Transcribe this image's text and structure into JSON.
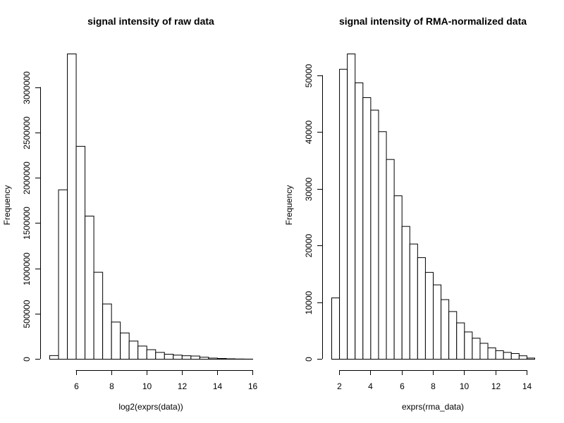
{
  "chart_data": [
    {
      "type": "bar",
      "title": "signal intensity of raw data",
      "xlabel": "log2(exprs(data))",
      "ylabel": "Frequency",
      "x_ticks": [
        6,
        8,
        10,
        12,
        14,
        16
      ],
      "y_ticks": [
        0,
        500000,
        1000000,
        1500000,
        2000000,
        2500000,
        3000000
      ],
      "bin_edges": [
        4.5,
        5.0,
        5.5,
        6.0,
        6.5,
        7.0,
        7.5,
        8.0,
        8.5,
        9.0,
        9.5,
        10.0,
        10.5,
        11.0,
        11.5,
        12.0,
        12.5,
        13.0,
        13.5,
        14.0,
        14.5,
        15.0,
        15.5,
        16.0
      ],
      "values": [
        40000,
        1870000,
        3370000,
        2350000,
        1580000,
        960000,
        610000,
        410000,
        290000,
        200000,
        145000,
        105000,
        75000,
        55000,
        45000,
        38000,
        35000,
        22000,
        12000,
        8000,
        4000,
        2000,
        1000
      ],
      "xlim": [
        4.5,
        16.0
      ],
      "ylim": [
        0,
        3370000
      ]
    },
    {
      "type": "bar",
      "title": "signal intensity of RMA-normalized data",
      "xlabel": "exprs(rma_data)",
      "ylabel": "Frequency",
      "x_ticks": [
        2,
        4,
        6,
        8,
        10,
        12,
        14
      ],
      "y_ticks": [
        0,
        10000,
        20000,
        30000,
        40000,
        50000
      ],
      "bin_edges": [
        1.5,
        2.0,
        2.5,
        3.0,
        3.5,
        4.0,
        4.5,
        5.0,
        5.5,
        6.0,
        6.5,
        7.0,
        7.5,
        8.0,
        8.5,
        9.0,
        9.5,
        10.0,
        10.5,
        11.0,
        11.5,
        12.0,
        12.5,
        13.0,
        13.5,
        14.0,
        14.5
      ],
      "values": [
        10800,
        51100,
        53800,
        48700,
        46100,
        43900,
        40100,
        35200,
        28800,
        23400,
        20300,
        17900,
        15300,
        13100,
        10500,
        8400,
        6400,
        4800,
        3700,
        2800,
        2000,
        1500,
        1200,
        1000,
        600,
        200
      ],
      "xlim": [
        1.5,
        14.5
      ],
      "ylim": [
        0,
        53800
      ]
    }
  ]
}
